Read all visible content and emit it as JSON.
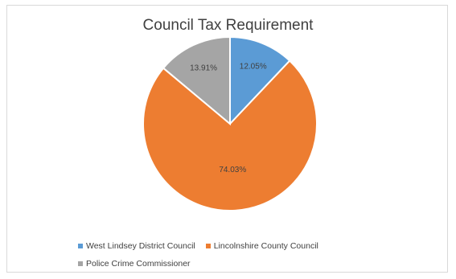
{
  "chart_data": {
    "type": "pie",
    "title": "Council Tax Requirement",
    "series": [
      {
        "name": "West Lindsey District Council",
        "value": 12.05,
        "label": "12.05%",
        "color": "#5b9bd5"
      },
      {
        "name": "Lincolnshire County Council",
        "value": 74.03,
        "label": "74.03%",
        "color": "#ed7d31"
      },
      {
        "name": "Police Crime Commissioner",
        "value": 13.91,
        "label": "13.91%",
        "color": "#a5a5a5"
      }
    ],
    "start_angle_deg": 0,
    "direction": "clockwise",
    "legend_position": "bottom"
  }
}
